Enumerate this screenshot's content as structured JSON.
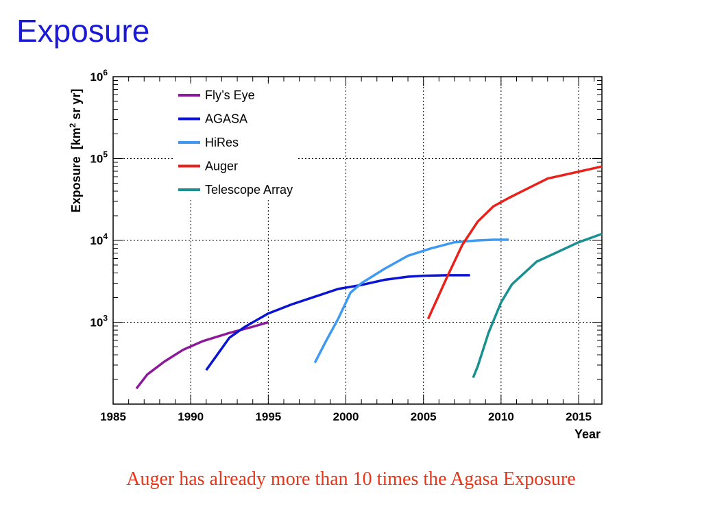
{
  "slide": {
    "title": "Exposure",
    "caption": "Auger has already more than 10 times the Agasa Exposure",
    "caption_color": "#e8361a"
  },
  "chart_data": {
    "type": "line",
    "xlabel": "Year",
    "ylabel": "Exposure  [km² sr yr]",
    "xlim": [
      1985,
      2016.5
    ],
    "ylim": [
      100,
      1000000
    ],
    "y_scale": "log",
    "x_ticks": [
      1985,
      1990,
      1995,
      2000,
      2005,
      2010,
      2015
    ],
    "y_ticks": [
      {
        "value": 1000,
        "base": "10",
        "exp": "3"
      },
      {
        "value": 10000,
        "base": "10",
        "exp": "4"
      },
      {
        "value": 100000,
        "base": "10",
        "exp": "5"
      },
      {
        "value": 1000000,
        "base": "10",
        "exp": "6"
      }
    ],
    "grid": true,
    "legend_position": "top-left",
    "series": [
      {
        "name": "Fly’s Eye",
        "color": "#8b1a9a",
        "points": [
          [
            1986.5,
            155
          ],
          [
            1987.2,
            230
          ],
          [
            1988.3,
            330
          ],
          [
            1989.5,
            460
          ],
          [
            1990.8,
            590
          ],
          [
            1992.5,
            740
          ],
          [
            1994.0,
            880
          ],
          [
            1995.0,
            1000
          ]
        ]
      },
      {
        "name": "AGASA",
        "color": "#0a14d2",
        "points": [
          [
            1991.0,
            260
          ],
          [
            1992.5,
            650
          ],
          [
            1993.5,
            880
          ],
          [
            1995.0,
            1280
          ],
          [
            1996.5,
            1650
          ],
          [
            1998.0,
            2050
          ],
          [
            1999.5,
            2550
          ],
          [
            2001.0,
            2850
          ],
          [
            2002.5,
            3300
          ],
          [
            2004.0,
            3600
          ],
          [
            2005.0,
            3700
          ],
          [
            2006.5,
            3750
          ],
          [
            2008.0,
            3750
          ]
        ]
      },
      {
        "name": "HiRes",
        "color": "#3d9af0",
        "points": [
          [
            1998.0,
            320
          ],
          [
            1998.7,
            580
          ],
          [
            1999.5,
            1100
          ],
          [
            2000.3,
            2300
          ],
          [
            2001.0,
            3000
          ],
          [
            2002.5,
            4500
          ],
          [
            2004.0,
            6500
          ],
          [
            2005.5,
            8000
          ],
          [
            2007.0,
            9500
          ],
          [
            2008.5,
            10000
          ],
          [
            2009.5,
            10200
          ],
          [
            2010.5,
            10200
          ]
        ]
      },
      {
        "name": "Auger",
        "color": "#e8221a",
        "points": [
          [
            2005.3,
            1100
          ],
          [
            2006.5,
            3500
          ],
          [
            2007.5,
            8800
          ],
          [
            2008.5,
            17000
          ],
          [
            2009.5,
            26000
          ],
          [
            2010.5,
            33000
          ],
          [
            2013.0,
            57000
          ],
          [
            2016.5,
            80000
          ]
        ]
      },
      {
        "name": "Telescope Array",
        "color": "#1a9090",
        "points": [
          [
            2008.2,
            210
          ],
          [
            2008.5,
            290
          ],
          [
            2009.2,
            750
          ],
          [
            2010.0,
            1750
          ],
          [
            2010.7,
            2900
          ],
          [
            2012.3,
            5500
          ],
          [
            2013.5,
            7000
          ],
          [
            2015.0,
            9500
          ],
          [
            2016.5,
            12000
          ]
        ]
      }
    ]
  }
}
